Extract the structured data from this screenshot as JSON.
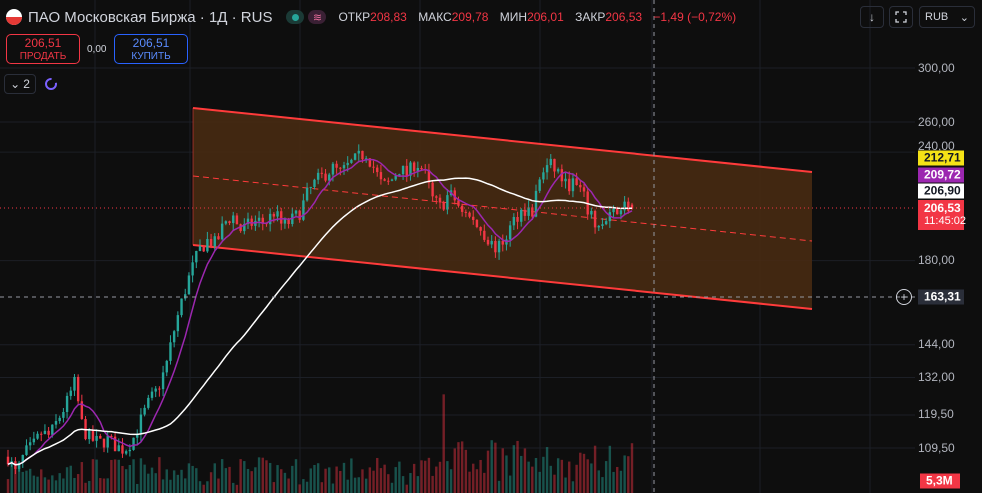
{
  "header": {
    "title": "ПАО Московская Биржа · 1Д · RUS",
    "ohlc": [
      {
        "label": "ОТКР",
        "value": "208,83"
      },
      {
        "label": "МАКС",
        "value": "209,78"
      },
      {
        "label": "МИН",
        "value": "206,01"
      },
      {
        "label": "ЗАКР",
        "value": "206,53"
      }
    ],
    "change": "−1,49 (−0,72%)"
  },
  "trade": {
    "sell_price": "206,51",
    "sell_label": "ПРОДАТЬ",
    "spread": "0,00",
    "buy_price": "206,51",
    "buy_label": "КУПИТЬ"
  },
  "indicators": {
    "collapsed_count": "2"
  },
  "toolbar": {
    "currency": "RUB",
    "download_icon": "arrow-down-icon",
    "fullscreen_icon": "fullscreen-icon"
  },
  "price_axis": {
    "labels": [
      "300,00",
      "260,00",
      "240,00",
      "180,00",
      "144,00",
      "132,00",
      "119,50",
      "109,50"
    ],
    "tags": {
      "channel_upper": "212,71",
      "sma_short": "209,72",
      "sma_long": "206,90",
      "last_price": "206,53",
      "countdown": "11:45:02",
      "crosshair": "163,31",
      "volume": "5,3M"
    }
  },
  "colors": {
    "up": "#26a69a",
    "down": "#f23645",
    "channel": "#ff3b3b",
    "channel_fill": "#4a2c12",
    "sma_short": "#9c27b0",
    "sma_long": "#ffffff",
    "bg": "#0e0e0e"
  },
  "chart_data": {
    "type": "candlestick",
    "symbol": "ПАО Московская Биржа",
    "interval": "1Д",
    "y_scale": "log",
    "y_ticks": [
      300,
      260,
      240,
      180,
      144,
      132,
      119.5,
      109.5
    ],
    "last": {
      "open": 208.83,
      "high": 209.78,
      "low": 206.01,
      "close": 206.53
    },
    "crosshair_price": 163.31,
    "channel_upper_value": 212.71,
    "sma_values": [
      209.72,
      206.9
    ],
    "volume_last": "5,3M",
    "price_path": [
      107,
      102,
      108,
      110,
      114,
      113,
      118,
      123,
      130,
      115,
      112,
      111,
      112,
      110,
      109,
      112,
      118,
      124,
      128,
      136,
      150,
      163,
      175,
      185,
      190,
      188,
      199,
      203,
      195,
      198,
      200,
      199,
      205,
      197,
      200,
      204,
      215,
      222,
      226,
      230,
      227,
      232,
      236,
      240,
      230,
      219,
      222,
      230,
      226,
      234,
      228,
      212,
      207,
      215,
      210,
      204,
      199,
      195,
      188,
      186,
      193,
      202,
      207,
      204,
      226,
      232,
      229,
      220,
      221,
      215,
      202,
      197,
      199,
      206,
      209,
      206
    ]
  }
}
